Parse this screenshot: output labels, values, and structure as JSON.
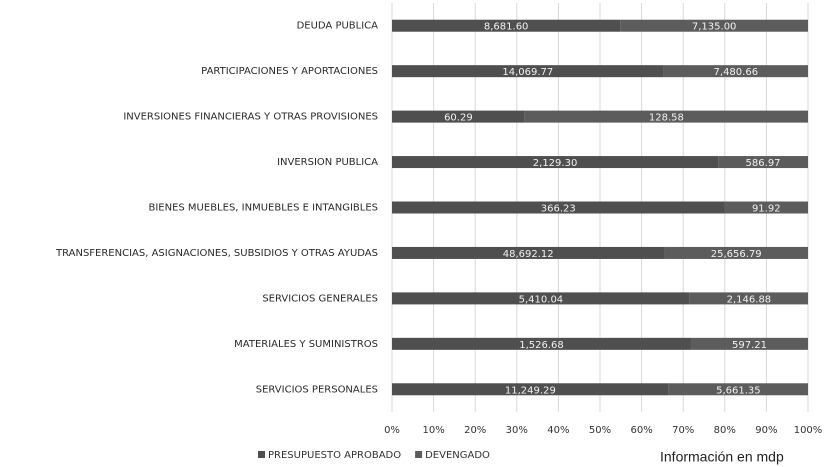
{
  "chart_data": {
    "type": "bar",
    "orientation": "horizontal",
    "stacking": "percent",
    "categories": [
      "DEUDA PUBLICA",
      "PARTICIPACIONES Y APORTACIONES",
      "INVERSIONES FINANCIERAS Y OTRAS PROVISIONES",
      "INVERSION PUBLICA",
      "BIENES MUEBLES, INMUEBLES E INTANGIBLES",
      "TRANSFERENCIAS, ASIGNACIONES, SUBSIDIOS Y OTRAS AYUDAS",
      "SERVICIOS GENERALES",
      "MATERIALES Y SUMINISTROS",
      "SERVICIOS PERSONALES"
    ],
    "series": [
      {
        "name": "PRESUPUESTO APROBADO",
        "color": "#4f4f4f",
        "values": [
          8681.6,
          14069.77,
          60.29,
          2129.3,
          366.23,
          48692.12,
          5410.04,
          1526.68,
          11249.29
        ],
        "value_labels": [
          "8,681.60",
          "14,069.77",
          "60.29",
          "2,129.30",
          "366.23",
          "48,692.12",
          "5,410.04",
          "1,526.68",
          "11,249.29"
        ]
      },
      {
        "name": "DEVENGADO",
        "color": "#5c5c5c",
        "values": [
          7135.0,
          7480.66,
          128.58,
          586.97,
          91.92,
          25656.79,
          2146.88,
          597.21,
          5661.35
        ],
        "value_labels": [
          "7,135.00",
          "7,480.66",
          "128.58",
          "586.97",
          "91.92",
          "25,656.79",
          "2,146.88",
          "597.21",
          "5,661.35"
        ]
      }
    ],
    "xlim": [
      0,
      100
    ],
    "xticks": [
      {
        "value": 0,
        "label": "0%"
      },
      {
        "value": 10,
        "label": "10%"
      },
      {
        "value": 20,
        "label": "20%"
      },
      {
        "value": 30,
        "label": "30%"
      },
      {
        "value": 40,
        "label": "40%"
      },
      {
        "value": 50,
        "label": "50%"
      },
      {
        "value": 60,
        "label": "60%"
      },
      {
        "value": 70,
        "label": "70%"
      },
      {
        "value": 80,
        "label": "80%"
      },
      {
        "value": 90,
        "label": "90%"
      },
      {
        "value": 100,
        "label": "100%"
      }
    ],
    "grid": true,
    "legend": "bottom",
    "annotation": "Información en mdp"
  }
}
